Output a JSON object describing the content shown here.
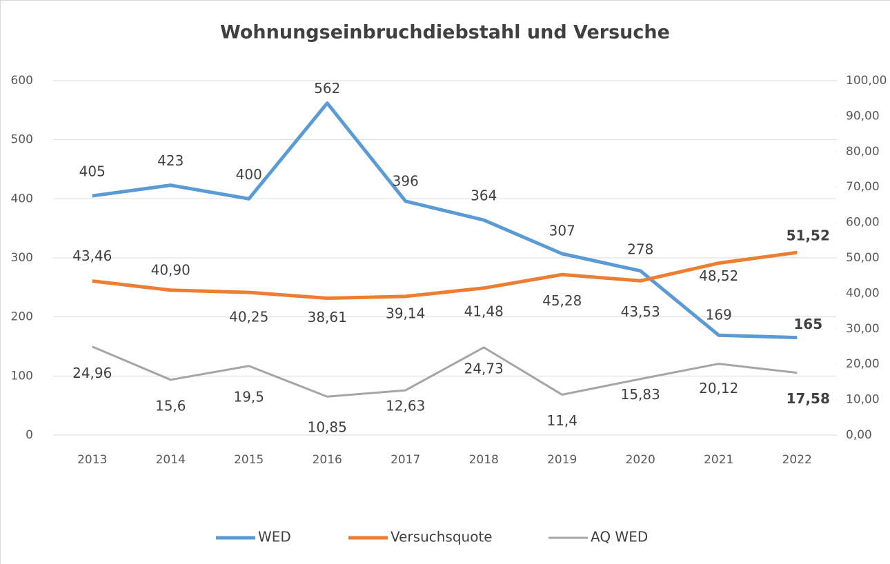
{
  "chart_data": {
    "type": "line",
    "title": "Wohnungseinbruchdiebstahl und Versuche",
    "categories": [
      "2013",
      "2014",
      "2015",
      "2016",
      "2017",
      "2018",
      "2019",
      "2020",
      "2021",
      "2022"
    ],
    "series": [
      {
        "name": "WED",
        "color": "#5b9bd5",
        "values": [
          405,
          423,
          400,
          562,
          396,
          364,
          307,
          278,
          169,
          165
        ]
      },
      {
        "name": "Versuchsquote",
        "color": "#ed7d31",
        "axis": "y2",
        "values": [
          43.46,
          40.9,
          40.25,
          38.61,
          39.14,
          41.48,
          45.28,
          43.53,
          48.52,
          51.52
        ],
        "value_labels": [
          "43,46",
          "40,90",
          "40,25",
          "38,61",
          "39,14",
          "41,48",
          "45,28",
          "43,53",
          "48,52",
          "51,52"
        ]
      },
      {
        "name": "AQ WED",
        "color": "#a5a5a5",
        "axis": "y2",
        "values": [
          24.96,
          15.6,
          19.5,
          10.85,
          12.63,
          24.73,
          11.4,
          15.83,
          20.12,
          17.58
        ],
        "value_labels": [
          "24,96",
          "15,6",
          "19,5",
          "10,85",
          "12,63",
          "24,73",
          "11,4",
          "15,83",
          "20,12",
          "17,58"
        ]
      }
    ],
    "ylim": [
      0,
      600
    ],
    "yticks": [
      0,
      100,
      200,
      300,
      400,
      500,
      600
    ],
    "y2lim": [
      0,
      100
    ],
    "y2ticks": [
      {
        "value": 0,
        "label": "0,00"
      },
      {
        "value": 10,
        "label": "10,00"
      },
      {
        "value": 20,
        "label": "20,00"
      },
      {
        "value": 30,
        "label": "30,00"
      },
      {
        "value": 40,
        "label": "40,00"
      },
      {
        "value": 50,
        "label": "50,00"
      },
      {
        "value": 60,
        "label": "60,00"
      },
      {
        "value": 70,
        "label": "70,00"
      },
      {
        "value": 80,
        "label": "80,00"
      },
      {
        "value": 90,
        "label": "90,00"
      },
      {
        "value": 100,
        "label": "100,00"
      }
    ],
    "grid": true,
    "legend": "bottom"
  }
}
